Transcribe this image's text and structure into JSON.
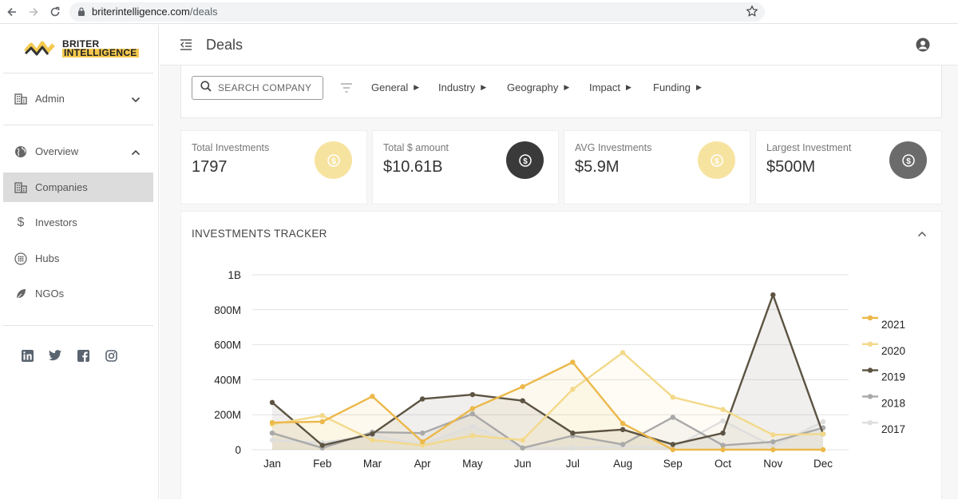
{
  "browser": {
    "domain": "briterintelligence.com",
    "path": "/deals"
  },
  "sidebar": {
    "logo_line1": "BRITER",
    "logo_line2": "INTELLIGENCE",
    "items": [
      {
        "label": "Admin",
        "icon": "building-icon"
      },
      {
        "label": "Overview",
        "icon": "globe-icon"
      },
      {
        "label": "Companies",
        "icon": "building-icon"
      },
      {
        "label": "Investors",
        "icon": "dollar-icon"
      },
      {
        "label": "Hubs",
        "icon": "grid-circle-icon"
      },
      {
        "label": "NGOs",
        "icon": "leaf-icon"
      }
    ],
    "socials": [
      "linkedin-icon",
      "twitter-icon",
      "facebook-icon",
      "instagram-icon"
    ]
  },
  "header": {
    "title": "Deals"
  },
  "filters": {
    "search_placeholder": "SEARCH COMPANY",
    "items": [
      "General",
      "Industry",
      "Geography",
      "Impact",
      "Funding"
    ]
  },
  "stats": [
    {
      "label": "Total Investments",
      "value": "1797",
      "color": "#f7e3a0"
    },
    {
      "label": "Total $ amount",
      "value": "$10.61B",
      "color": "#3a3a3a"
    },
    {
      "label": "AVG Investments",
      "value": "$5.9M",
      "color": "#f7e3a0"
    },
    {
      "label": "Largest Investment",
      "value": "$500M",
      "color": "#6b6b6b"
    }
  ],
  "tracker": {
    "title": "INVESTMENTS TRACKER"
  },
  "chart_data": {
    "type": "line",
    "title": "INVESTMENTS TRACKER",
    "categories": [
      "Jan",
      "Feb",
      "Mar",
      "Apr",
      "May",
      "Jun",
      "Jul",
      "Aug",
      "Sep",
      "Oct",
      "Nov",
      "Dec"
    ],
    "ylim": [
      0,
      1000000000
    ],
    "yticks": [
      {
        "value": 0,
        "label": "0"
      },
      {
        "value": 200000000,
        "label": "200M"
      },
      {
        "value": 400000000,
        "label": "400M"
      },
      {
        "value": 600000000,
        "label": "600M"
      },
      {
        "value": 800000000,
        "label": "800M"
      },
      {
        "value": 1000000000,
        "label": "1B"
      }
    ],
    "grid": true,
    "legend": "right",
    "series": [
      {
        "name": "2021",
        "color": "#ecb84a",
        "values": [
          155000000,
          160000000,
          305000000,
          45000000,
          235000000,
          360000000,
          500000000,
          150000000,
          0,
          0,
          0,
          0
        ]
      },
      {
        "name": "2020",
        "color": "#f3d98a",
        "values": [
          145000000,
          195000000,
          55000000,
          25000000,
          80000000,
          55000000,
          345000000,
          555000000,
          300000000,
          230000000,
          85000000,
          90000000
        ]
      },
      {
        "name": "2019",
        "color": "#5c5342",
        "values": [
          270000000,
          25000000,
          90000000,
          290000000,
          315000000,
          280000000,
          95000000,
          115000000,
          30000000,
          95000000,
          885000000,
          90000000
        ]
      },
      {
        "name": "2018",
        "color": "#a9a9a9",
        "values": [
          95000000,
          10000000,
          100000000,
          95000000,
          205000000,
          10000000,
          80000000,
          30000000,
          185000000,
          25000000,
          45000000,
          125000000
        ]
      },
      {
        "name": "2017",
        "color": "#dedede",
        "values": [
          55000000,
          40000000,
          80000000,
          30000000,
          135000000,
          10000000,
          10000000,
          20000000,
          10000000,
          165000000,
          20000000,
          160000000
        ]
      }
    ]
  }
}
